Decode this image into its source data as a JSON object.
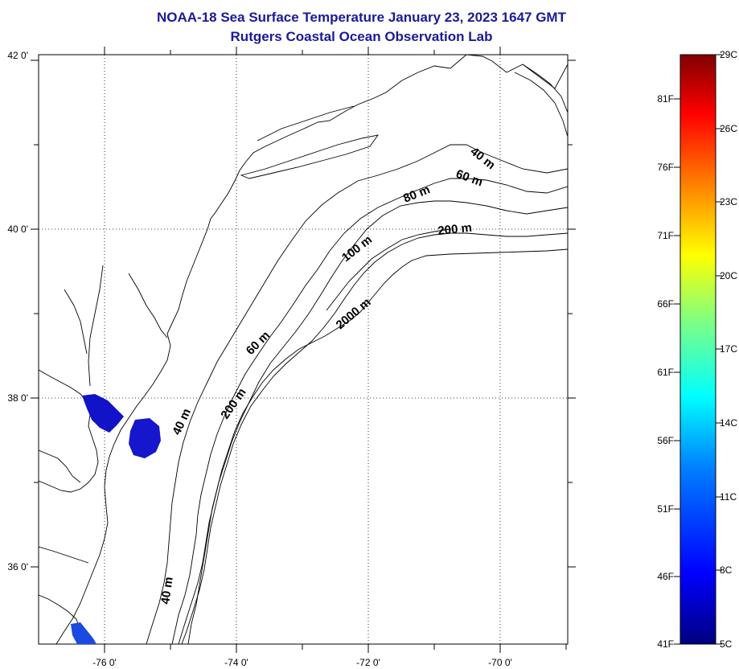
{
  "title": "NOAA-18 Sea Surface Temperature January 23, 2023 1647 GMT",
  "subtitle": "Rutgers Coastal Ocean Observation Lab",
  "map": {
    "lon_ticks": [
      "-76 0'",
      "-74 0'",
      "-72 0'",
      "-70 0'"
    ],
    "lat_ticks": [
      "42 0'",
      "40 0'",
      "38 0'",
      "36 0'"
    ],
    "contour_labels": [
      "40 m",
      "60 m",
      "80 m",
      "200 m",
      "100 m",
      "2000 m",
      "60 m",
      "200 m",
      "40 m",
      "40 m"
    ]
  },
  "colorbar": {
    "celsius": [
      "29C",
      "26C",
      "23C",
      "20C",
      "17C",
      "14C",
      "11C",
      "8C",
      "5C"
    ],
    "fahrenheit": [
      "81F",
      "76F",
      "71F",
      "66F",
      "61F",
      "56F",
      "51F",
      "46F",
      "41F"
    ],
    "colors": [
      "#000080",
      "#0000ff",
      "#0080ff",
      "#00ffff",
      "#80ff80",
      "#ffff00",
      "#ff8000",
      "#ff0000",
      "#800000"
    ]
  }
}
